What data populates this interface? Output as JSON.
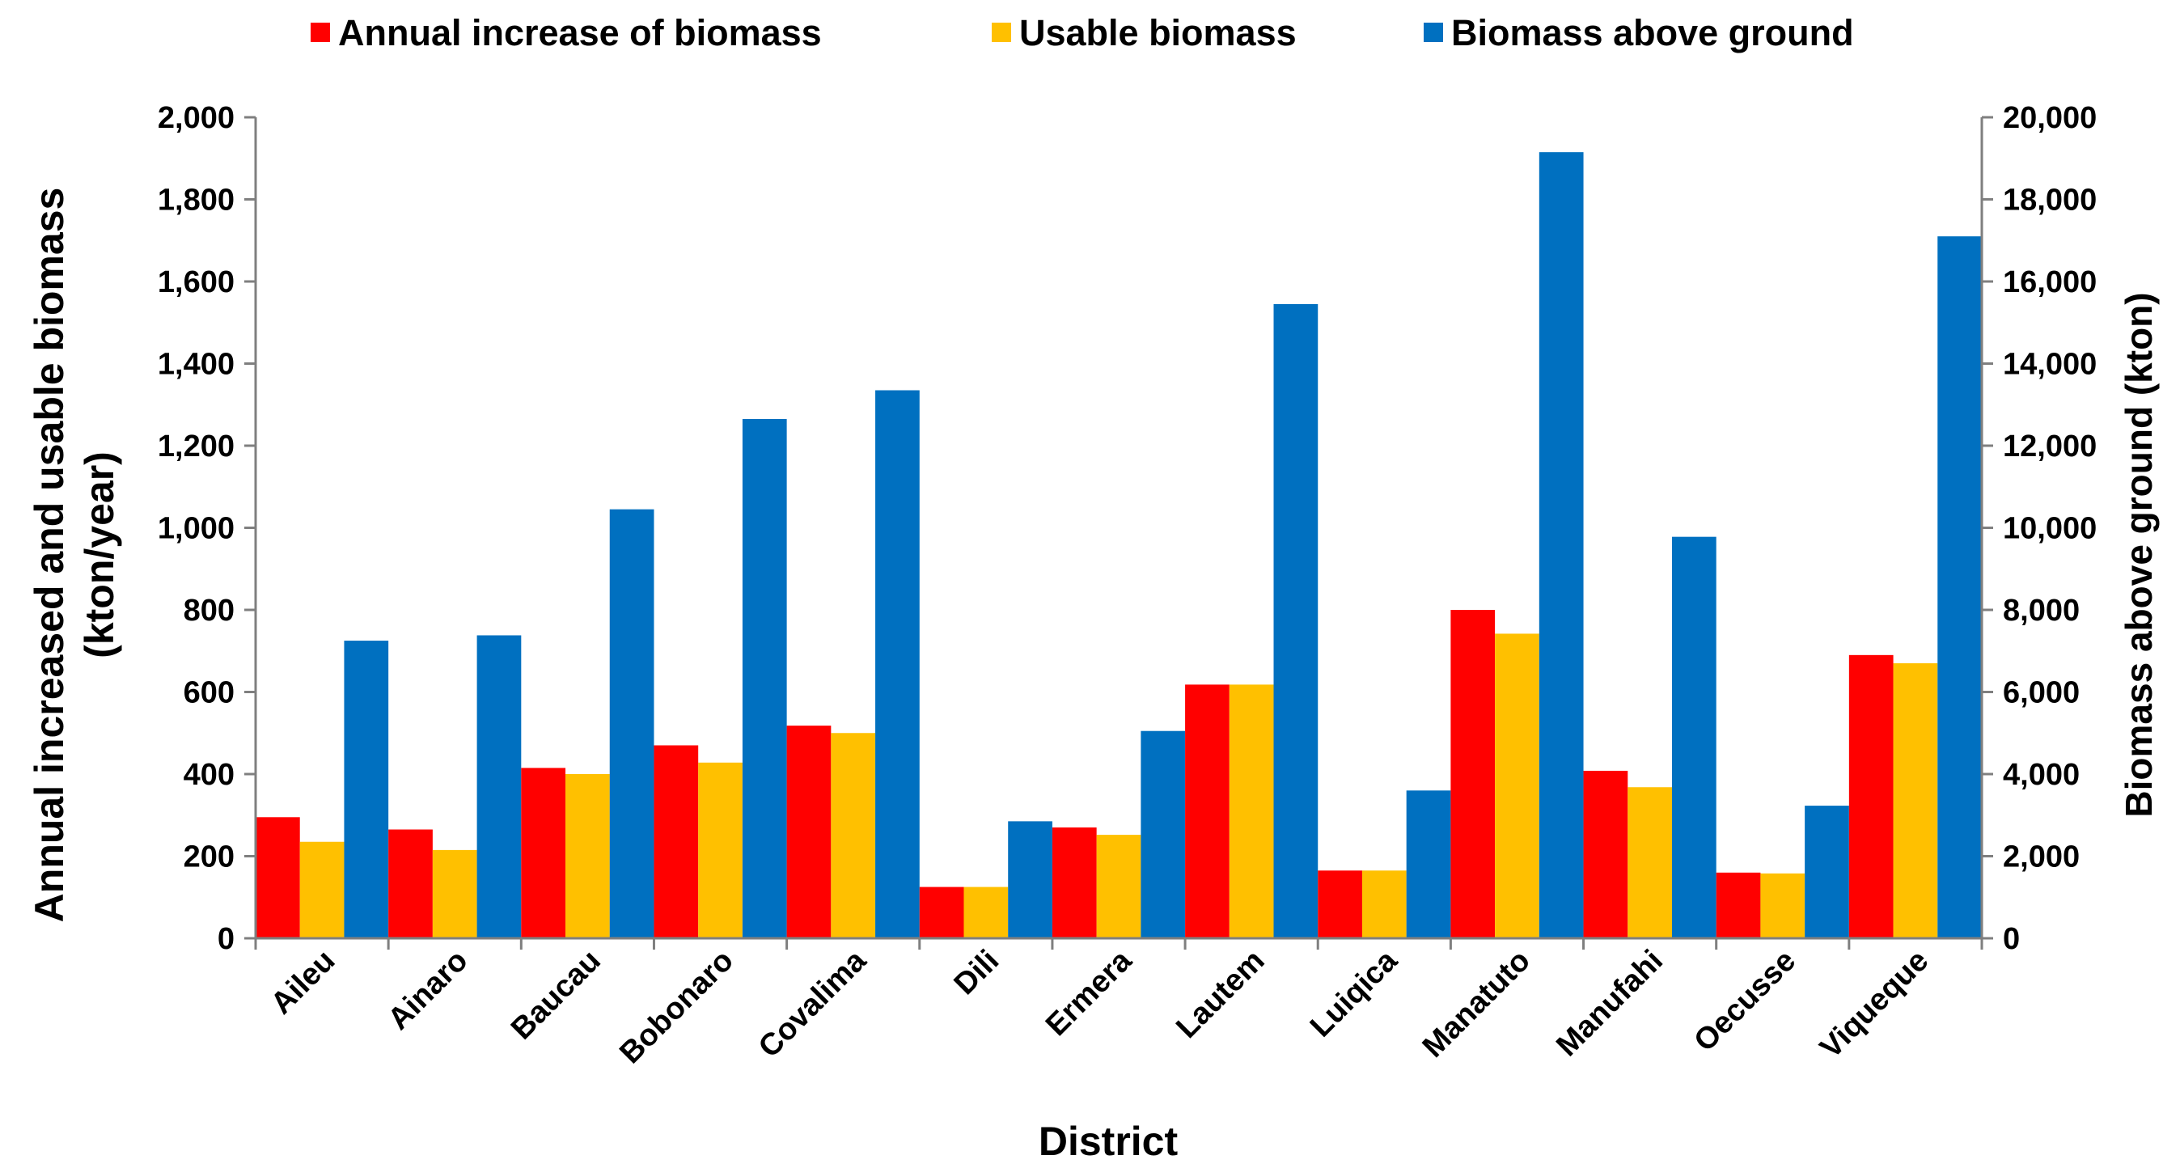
{
  "chart_data": {
    "type": "bar",
    "title": "",
    "categories": [
      "Aileu",
      "Ainaro",
      "Baucau",
      "Bobonaro",
      "Covalima",
      "Dili",
      "Ermera",
      "Lautem",
      "Luiqica",
      "Manatuto",
      "Manufahi",
      "Oecusse",
      "Viqueque"
    ],
    "series": [
      {
        "name": "Annual increase of biomass",
        "axis": "left",
        "color": "#ff0000",
        "values": [
          295,
          265,
          415,
          470,
          518,
          125,
          270,
          618,
          165,
          800,
          408,
          160,
          690
        ]
      },
      {
        "name": "Usable biomass",
        "axis": "left",
        "color": "#ffc000",
        "values": [
          235,
          215,
          400,
          428,
          500,
          125,
          252,
          618,
          165,
          742,
          368,
          158,
          670
        ]
      },
      {
        "name": "Biomass above ground",
        "axis": "right",
        "color": "#0070c0",
        "values": [
          7250,
          7380,
          10450,
          12650,
          13350,
          2850,
          5050,
          15450,
          3600,
          19150,
          9780,
          3230,
          17100
        ]
      }
    ],
    "xlabel": "District",
    "ylabel_lines": [
      "Annual increased and usable biomass",
      "(kton/year)"
    ],
    "y2label": "Biomass above ground (kton)",
    "ylim": [
      0,
      2000
    ],
    "y2lim": [
      0,
      20000
    ],
    "yticks": [
      "0",
      "200",
      "400",
      "600",
      "800",
      "1,000",
      "1,200",
      "1,400",
      "1,600",
      "1,800",
      "2,000"
    ],
    "y2ticks": [
      "0",
      "2,000",
      "4,000",
      "6,000",
      "8,000",
      "10,000",
      "12,000",
      "14,000",
      "16,000",
      "18,000",
      "20,000"
    ],
    "legend_position": "top",
    "grid": false
  }
}
